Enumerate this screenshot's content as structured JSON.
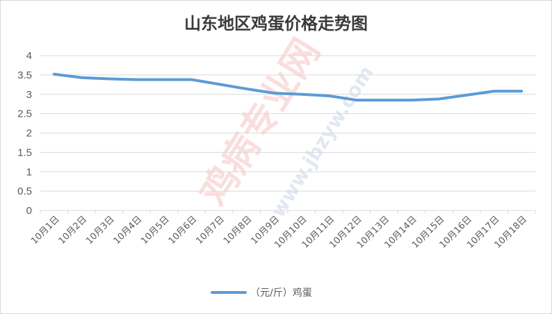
{
  "chart_data": {
    "type": "line",
    "title": "山东地区鸡蛋价格走势图",
    "categories": [
      "10月1日",
      "10月2日",
      "10月3日",
      "10月4日",
      "10月5日",
      "10月6日",
      "10月7日",
      "10月8日",
      "10月9日",
      "10月10日",
      "10月11日",
      "10月12日",
      "10月13日",
      "10月14日",
      "10月15日",
      "10月16日",
      "10月17日",
      "10月18日"
    ],
    "series": [
      {
        "name": "（元/斤）鸡蛋",
        "color": "#5b9bd5",
        "values": [
          3.52,
          3.43,
          3.4,
          3.38,
          3.38,
          3.38,
          3.26,
          3.14,
          3.03,
          3.0,
          2.96,
          2.85,
          2.85,
          2.85,
          2.88,
          2.98,
          3.08,
          3.08
        ]
      }
    ],
    "ylim": [
      0,
      4
    ],
    "yticks": [
      "0",
      "0.5",
      "1",
      "1.5",
      "2",
      "2.5",
      "3",
      "3.5",
      "4"
    ],
    "grid": true,
    "legend": "bottom-center"
  },
  "watermark": {
    "main": "鸡病专业网",
    "url": "www.jbzyw.com"
  }
}
